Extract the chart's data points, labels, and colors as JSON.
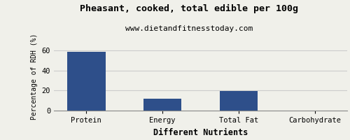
{
  "title": "Pheasant, cooked, total edible per 100g",
  "subtitle": "www.dietandfitnesstoday.com",
  "xlabel": "Different Nutrients",
  "ylabel": "Percentage of RDH (%)",
  "categories": [
    "Protein",
    "Energy",
    "Total Fat",
    "Carbohydrate"
  ],
  "values": [
    58.5,
    12.0,
    19.5,
    0.3
  ],
  "bar_color": "#2e4f8a",
  "ylim": [
    0,
    68
  ],
  "yticks": [
    0,
    20,
    40,
    60
  ],
  "background_color": "#f0f0ea",
  "grid_color": "#cccccc",
  "title_fontsize": 9.5,
  "subtitle_fontsize": 8,
  "xlabel_fontsize": 8.5,
  "ylabel_fontsize": 7,
  "tick_fontsize": 7.5,
  "bar_width": 0.5
}
